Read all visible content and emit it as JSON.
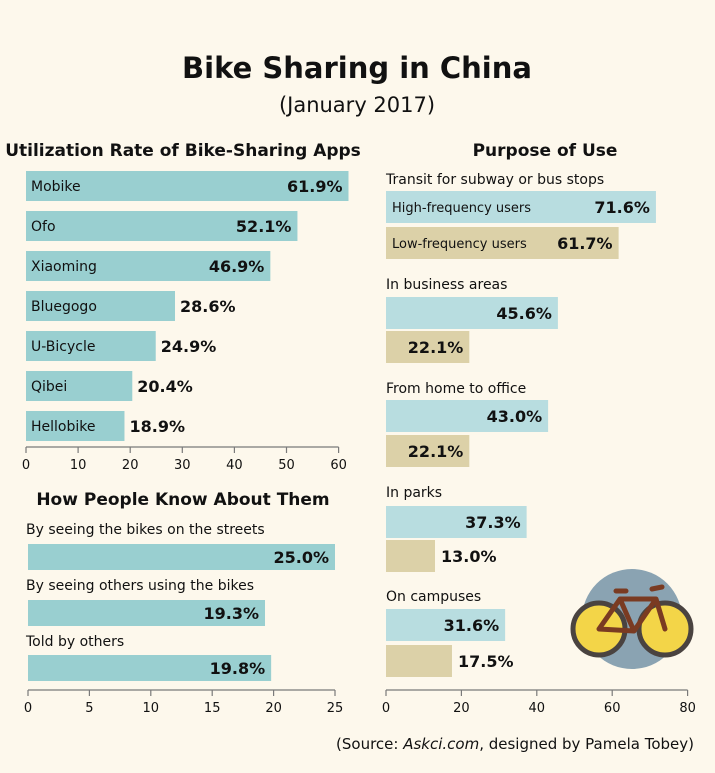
{
  "title": "Bike Sharing in China",
  "subtitle": "(January 2017)",
  "colors": {
    "background": "#fdf8ec",
    "bar_teal": "#99cfd0",
    "bar_light_teal": "#b8dde0",
    "bar_tan": "#dcd1a8",
    "axis": "#7a7a7a",
    "text": "#111111"
  },
  "source": {
    "prefix": "(Source: ",
    "site": "Askci.com",
    "suffix": ", designed by Pamela Tobey)"
  },
  "icons": {
    "bike": "bicycle-icon"
  },
  "chart_data": [
    {
      "type": "bar",
      "orientation": "horizontal",
      "title": "Utilization Rate of Bike-Sharing Apps",
      "categories": [
        "Mobike",
        "Ofo",
        "Xiaoming",
        "Bluegogo",
        "U-Bicycle",
        "Qibei",
        "Hellobike"
      ],
      "values": [
        61.9,
        52.1,
        46.9,
        28.6,
        24.9,
        20.4,
        18.9
      ],
      "value_labels": [
        "61.9%",
        "52.1%",
        "46.9%",
        "28.6%",
        "24.9%",
        "20.4%",
        "18.9%"
      ],
      "xlim": [
        0,
        60
      ],
      "xticks": [
        "0",
        "10",
        "20",
        "30",
        "40",
        "50",
        "60"
      ],
      "grid": false
    },
    {
      "type": "bar",
      "orientation": "horizontal",
      "title": "How People Know About Them",
      "categories": [
        "By seeing the bikes on the streets",
        "By seeing others using the bikes",
        "Told by others"
      ],
      "values": [
        25.0,
        19.3,
        19.8
      ],
      "value_labels": [
        "25.0%",
        "19.3%",
        "19.8%"
      ],
      "xlim": [
        0,
        25
      ],
      "xticks": [
        "0",
        "5",
        "10",
        "15",
        "20",
        "25"
      ],
      "grid": false
    },
    {
      "type": "bar",
      "orientation": "horizontal",
      "title": "Purpose of Use",
      "categories": [
        "Transit for subway or bus stops",
        "In business areas",
        "From home to office",
        "In parks",
        "On campuses"
      ],
      "series": [
        {
          "name": "High-frequency users",
          "values": [
            71.6,
            45.6,
            43.0,
            37.3,
            31.6
          ],
          "value_labels": [
            "71.6%",
            "45.6%",
            "43.0%",
            "37.3%",
            "31.6%"
          ]
        },
        {
          "name": "Low-frequency users",
          "values": [
            61.7,
            22.1,
            22.1,
            13.0,
            17.5
          ],
          "value_labels": [
            "61.7%",
            "22.1%",
            "22.1%",
            "13.0%",
            "17.5%"
          ]
        }
      ],
      "xlim": [
        0,
        80
      ],
      "xticks": [
        "0",
        "20",
        "40",
        "60",
        "80"
      ],
      "grid": false
    }
  ]
}
